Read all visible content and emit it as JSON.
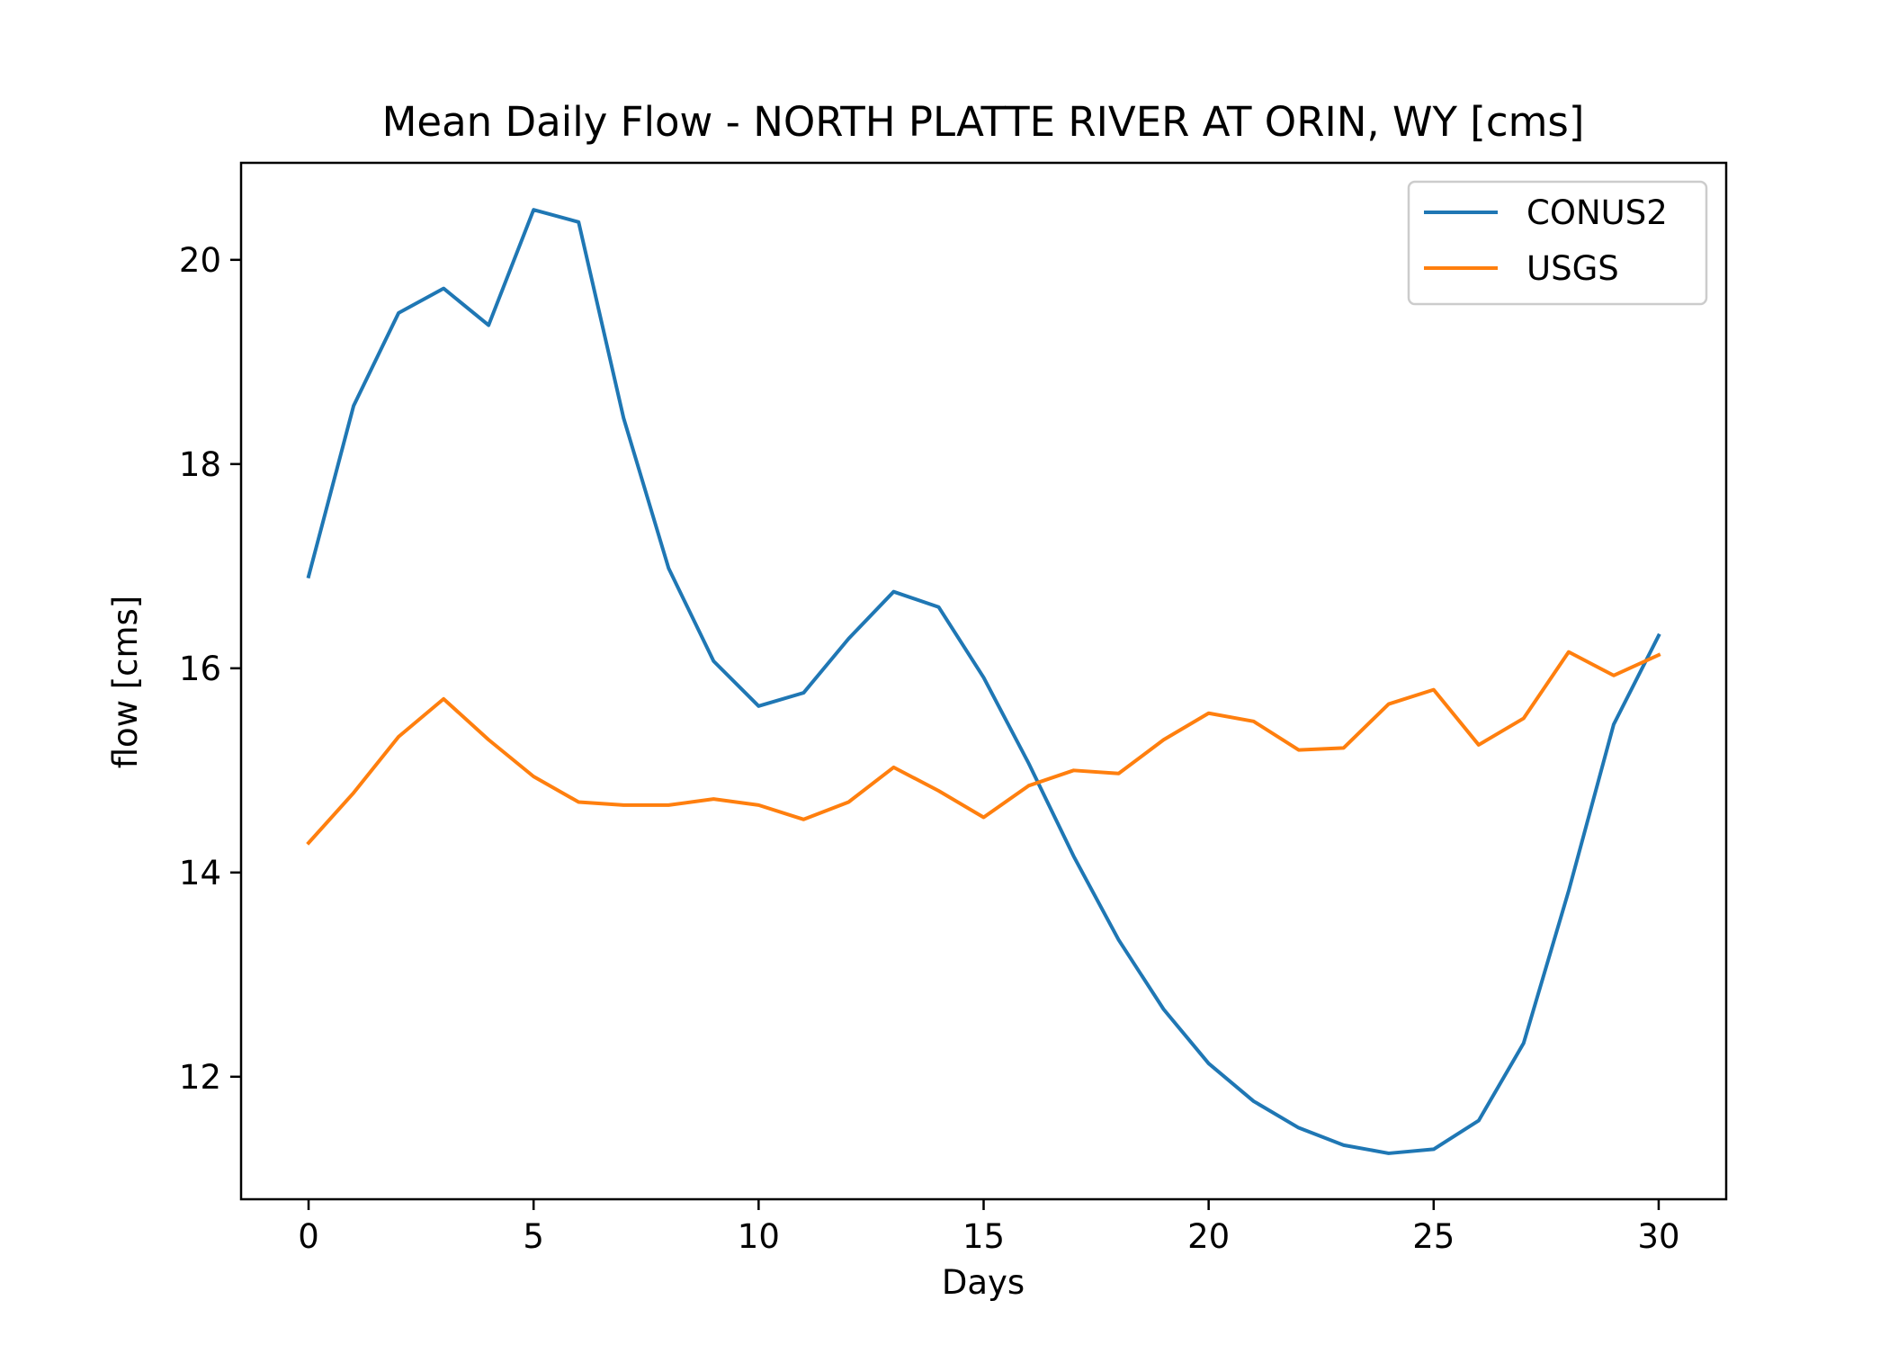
{
  "chart_data": {
    "type": "line",
    "title": "Mean Daily Flow - NORTH PLATTE RIVER AT ORIN, WY [cms]",
    "xlabel": "Days",
    "ylabel": "flow [cms]",
    "xlim": [
      -1.5,
      31.5
    ],
    "ylim": [
      10.8,
      20.95
    ],
    "xticks": [
      0,
      5,
      10,
      15,
      20,
      25,
      30
    ],
    "yticks": [
      12,
      14,
      16,
      18,
      20
    ],
    "grid": false,
    "legend_position": "top-right",
    "x": [
      0,
      1,
      2,
      3,
      4,
      5,
      6,
      7,
      8,
      9,
      10,
      11,
      12,
      13,
      14,
      15,
      16,
      17,
      18,
      19,
      20,
      21,
      22,
      23,
      24,
      25,
      26,
      27,
      28,
      29,
      30
    ],
    "series": [
      {
        "name": "CONUS2",
        "color": "#1f77b4",
        "values": [
          16.9,
          18.57,
          19.48,
          19.72,
          19.36,
          20.49,
          20.37,
          18.45,
          16.98,
          16.07,
          15.63,
          15.76,
          16.29,
          16.75,
          16.6,
          15.91,
          15.07,
          14.16,
          13.34,
          12.66,
          12.13,
          11.76,
          11.5,
          11.33,
          11.25,
          11.29,
          11.57,
          12.33,
          13.82,
          15.45,
          16.32
        ]
      },
      {
        "name": "USGS",
        "color": "#ff7f0e",
        "values": [
          14.29,
          14.78,
          15.33,
          15.7,
          15.3,
          14.94,
          14.69,
          14.66,
          14.66,
          14.72,
          14.66,
          14.52,
          14.69,
          15.03,
          14.8,
          14.54,
          14.85,
          15.0,
          14.97,
          15.3,
          15.56,
          15.48,
          15.2,
          15.22,
          15.65,
          15.79,
          15.25,
          15.51,
          16.16,
          15.93,
          16.13
        ]
      }
    ]
  }
}
